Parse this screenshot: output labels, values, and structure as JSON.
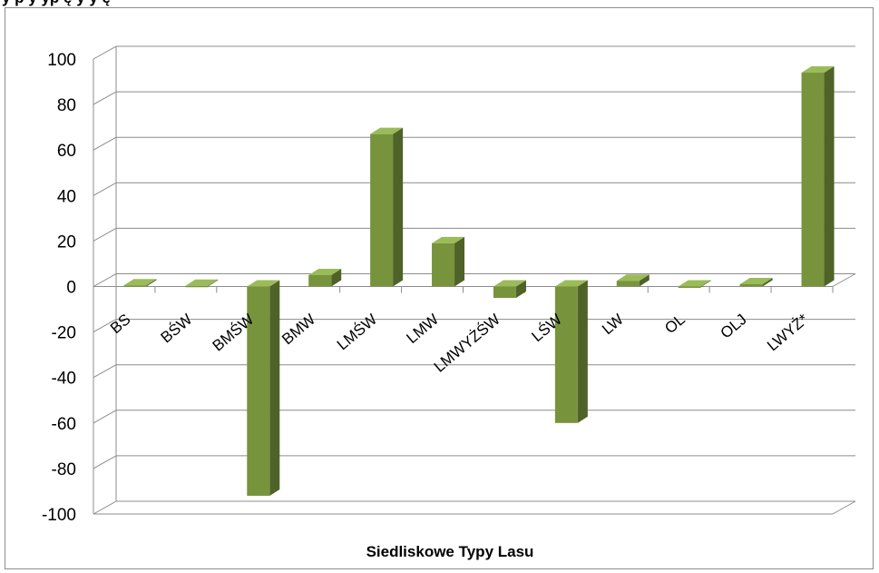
{
  "caption": "y p                                y  yp                 ę  y         y ę",
  "chart_data": {
    "type": "bar",
    "title": "",
    "xlabel": "Siedliskowe Typy Lasu",
    "ylabel": "",
    "ylim": [
      -100,
      100
    ],
    "yticks": [
      100,
      80,
      60,
      40,
      20,
      0,
      -20,
      -40,
      -60,
      -80,
      -100
    ],
    "categories": [
      "BS",
      "BŚW",
      "BMŚW",
      "BMW",
      "LMŚW",
      "LMW",
      "LMWYŻŚW",
      "LŚW",
      "LW",
      "OL",
      "OLJ",
      "LWYŻ*"
    ],
    "values": [
      0.5,
      0.3,
      -92,
      5,
      67,
      19,
      -5,
      -60,
      2.5,
      -0.3,
      1,
      94
    ],
    "grid": true,
    "legend": "none",
    "bar_color": "#77933c"
  }
}
